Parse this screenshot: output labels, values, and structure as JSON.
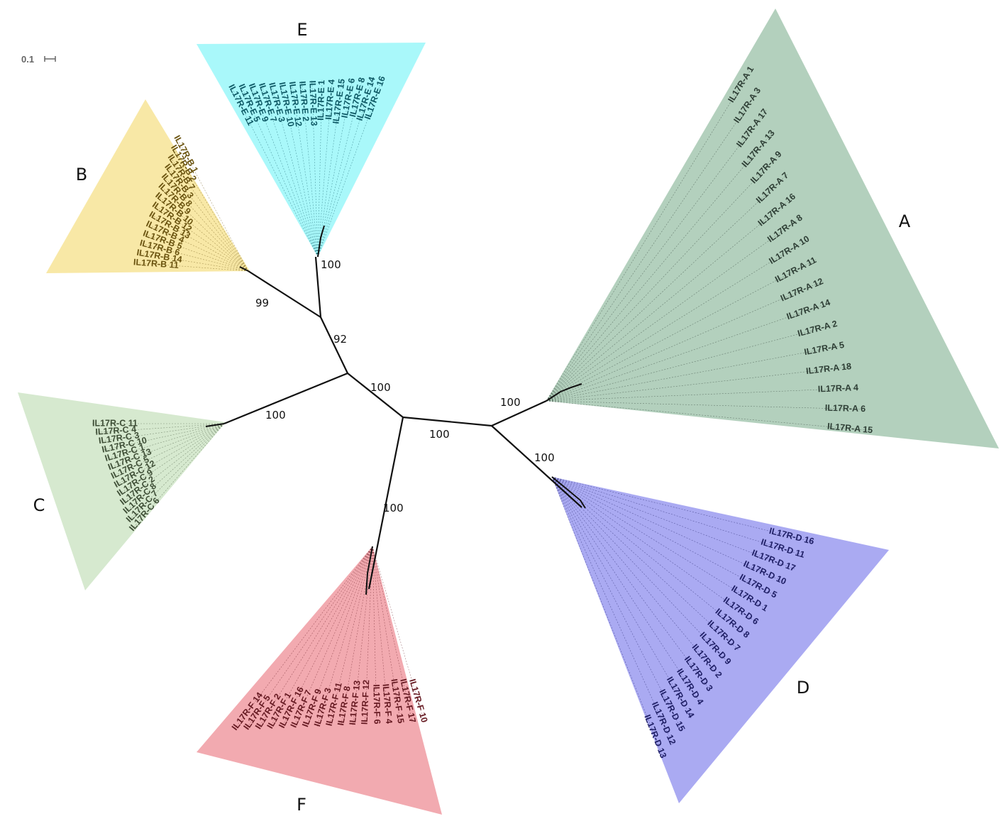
{
  "scale_bar": {
    "label": "0.1"
  },
  "clades": [
    {
      "id": "A",
      "letter": "A",
      "fill": "#b3d0bd",
      "text_color": "#2f3f36",
      "leaves": [
        "IL17R-A 1",
        "IL17R-A 3",
        "IL17R-A 17",
        "IL17R-A 13",
        "IL17R-A 9",
        "IL17R-A 7",
        "IL17R-A 16",
        "IL17R-A 8",
        "IL17R-A 10",
        "IL17R-A 11",
        "IL17R-A 12",
        "IL17R-A 14",
        "IL17R-A 2",
        "IL17R-A 5",
        "IL17R-A 18",
        "IL17R-A 4",
        "IL17R-A 6",
        "IL17R-A 15"
      ]
    },
    {
      "id": "B",
      "letter": "B",
      "fill": "#f8e8a6",
      "text_color": "#6b5410",
      "leaves": [
        "IL17R-B 1",
        "IL17R-B 2",
        "IL17R-B 7",
        "IL17R-B 3",
        "IL17R-B 8",
        "IL17R-B 9",
        "IL17R-B 10",
        "IL17R-B 12",
        "IL17R-B 13",
        "IL17R-B 4",
        "IL17R-B 5",
        "IL17R-B 6",
        "IL17R-B 14",
        "IL17R-B 11"
      ]
    },
    {
      "id": "C",
      "letter": "C",
      "fill": "#d6e9cf",
      "text_color": "#3f4f37",
      "leaves": [
        "IL17R-C 11",
        "IL17R-C 4",
        "IL17R-C 3",
        "IL17R-C 10",
        "IL17R-C 1",
        "IL17R-C 13",
        "IL17R-C 5",
        "IL17R-C 12",
        "IL17R-C 9",
        "IL17R-C 2",
        "IL17R-C 8",
        "IL17R-C 7",
        "IL17R-C 6"
      ]
    },
    {
      "id": "D",
      "letter": "D",
      "fill": "#aaaaf2",
      "text_color": "#1f1f66",
      "leaves": [
        "IL17R-D 16",
        "IL17R-D 11",
        "IL17R-D 17",
        "IL17R-D 10",
        "IL17R-D 5",
        "IL17R-D 1",
        "IL17R-D 6",
        "IL17R-D 8",
        "IL17R-D 7",
        "IL17R-D 9",
        "IL17R-D 2",
        "IL17R-D 3",
        "IL17R-D 4",
        "IL17R-D 14",
        "IL17R-D 15",
        "IL17R-D 12",
        "IL17R-D 13"
      ]
    },
    {
      "id": "E",
      "letter": "E",
      "fill": "#a9f8fa",
      "text_color": "#0f5a66",
      "leaves": [
        "IL17R-E 11",
        "IL17R-E 5",
        "IL17R-E 9",
        "IL17R-E 7",
        "IL17R-E 3",
        "IL17R-E 10",
        "IL17R-E 12",
        "IL17R-E 2",
        "IL17R-E 13",
        "IL17R-E 1",
        "IL17R-E 4",
        "IL17R-E 15",
        "IL17R-E 6",
        "IL17R-E 8",
        "IL17R-E 14",
        "IL17R-E 16"
      ]
    },
    {
      "id": "F",
      "letter": "F",
      "fill": "#f2aab0",
      "text_color": "#661a22",
      "leaves": [
        "IL17R-F 14",
        "IL17R-F 5",
        "IL17R-F 2",
        "IL17R-F 1",
        "IL17R-F 16",
        "IL17R-F 7",
        "IL17R-F 9",
        "IL17R-F 3",
        "IL17R-F 11",
        "IL17R-F 8",
        "IL17R-F 13",
        "IL17R-F 12",
        "IL17R-F 6",
        "IL17R-F 4",
        "IL17R-F 15",
        "IL17R-F 17",
        "IL17R-F 10"
      ]
    }
  ],
  "bootstrap_values": [
    {
      "id": "e",
      "value": "100"
    },
    {
      "id": "b",
      "value": "99"
    },
    {
      "id": "be",
      "value": "92"
    },
    {
      "id": "core",
      "value": "100"
    },
    {
      "id": "c",
      "value": "100"
    },
    {
      "id": "mid",
      "value": "100"
    },
    {
      "id": "a",
      "value": "100"
    },
    {
      "id": "d",
      "value": "100"
    },
    {
      "id": "f",
      "value": "100"
    }
  ]
}
